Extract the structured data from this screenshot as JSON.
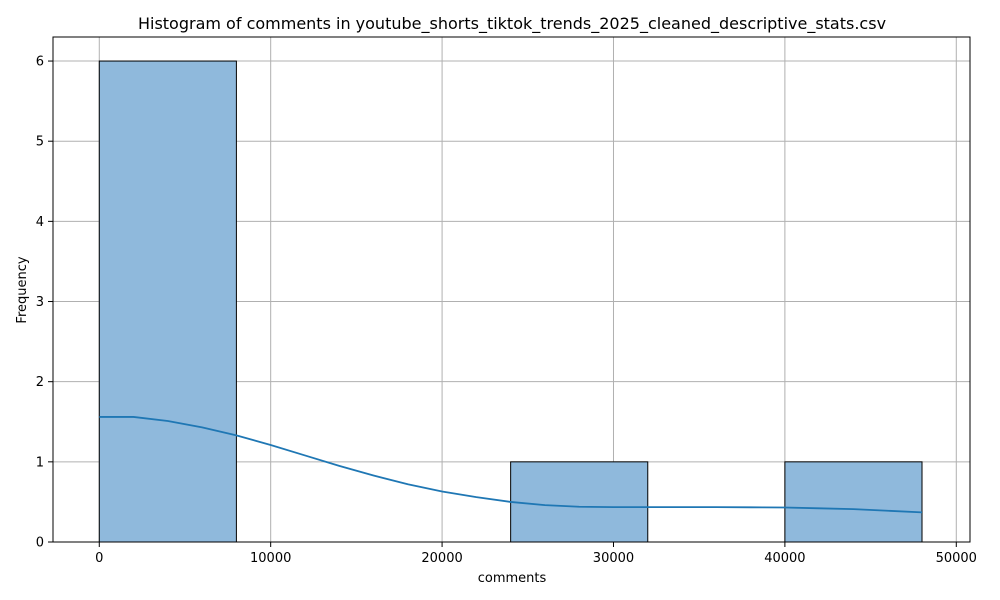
{
  "chart_data": {
    "type": "bar",
    "title": "Histogram of comments in youtube_shorts_tiktok_trends_2025_cleaned_descriptive_stats.csv",
    "xlabel": "comments",
    "ylabel": "Frequency",
    "xlim": [
      -2700,
      50800
    ],
    "ylim": [
      0,
      6.3
    ],
    "xticks": [
      0,
      10000,
      20000,
      30000,
      40000,
      50000
    ],
    "yticks": [
      0,
      1,
      2,
      3,
      4,
      5,
      6
    ],
    "bins": [
      {
        "start": 0,
        "end": 8000,
        "count": 6
      },
      {
        "start": 8000,
        "end": 16000,
        "count": 0
      },
      {
        "start": 16000,
        "end": 24000,
        "count": 0
      },
      {
        "start": 24000,
        "end": 32000,
        "count": 1
      },
      {
        "start": 32000,
        "end": 40000,
        "count": 0
      },
      {
        "start": 40000,
        "end": 48000,
        "count": 1
      }
    ],
    "kde": {
      "x": [
        0,
        2000,
        4000,
        6000,
        8000,
        10000,
        12000,
        14000,
        16000,
        18000,
        20000,
        22000,
        24000,
        26000,
        28000,
        30000,
        32000,
        34000,
        36000,
        38000,
        40000,
        42000,
        44000,
        46000,
        48000
      ],
      "y": [
        1.56,
        1.56,
        1.51,
        1.43,
        1.33,
        1.21,
        1.08,
        0.95,
        0.83,
        0.72,
        0.63,
        0.56,
        0.5,
        0.46,
        0.44,
        0.435,
        0.435,
        0.435,
        0.435,
        0.433,
        0.43,
        0.42,
        0.41,
        0.39,
        0.37
      ]
    },
    "grid": true,
    "colors": {
      "bar": "#8fb9dc",
      "kde": "#1f77b4"
    }
  }
}
